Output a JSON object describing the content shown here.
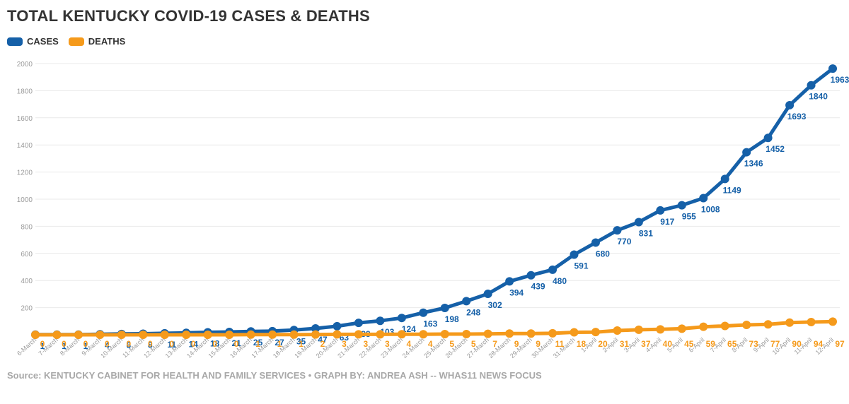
{
  "title": "TOTAL KENTUCKY COVID-19 CASES & DEATHS",
  "legend": {
    "cases_label": "CASES",
    "deaths_label": "DEATHS"
  },
  "source": "Source: KENTUCKY CABINET FOR HEALTH AND FAMILY SERVICES • GRAPH BY: ANDREA ASH -- WHAS11 NEWS FOCUS",
  "colors": {
    "cases": "#1560a8",
    "deaths": "#f59a1b",
    "grid": "#e9e9e9",
    "tick": "#9a9a9a"
  },
  "chart_data": {
    "type": "line",
    "title": "TOTAL KENTUCKY COVID-19 CASES & DEATHS",
    "categories": [
      "6-March",
      "7-March",
      "8-March",
      "9-March",
      "10-March",
      "11-March",
      "12-March",
      "13-March",
      "14-March",
      "15-March",
      "16-March",
      "17-March",
      "18-March",
      "19-March",
      "20-March",
      "21-March",
      "22-March",
      "23-March",
      "24-March",
      "25-March",
      "26-March",
      "27-March",
      "28-March",
      "29-March",
      "30-March",
      "31-March",
      "1-April",
      "2-April",
      "3-April",
      "4-April",
      "5-April",
      "6-April",
      "7-April",
      "8-April",
      "9-April",
      "10-April",
      "11-April",
      "12-April"
    ],
    "series": [
      {
        "name": "CASES",
        "values": [
          1,
          1,
          1,
          4,
          6,
          8,
          11,
          14,
          18,
          21,
          25,
          27,
          35,
          47,
          63,
          88,
          103,
          124,
          163,
          198,
          248,
          302,
          394,
          439,
          480,
          591,
          680,
          770,
          831,
          917,
          955,
          1008,
          1149,
          1346,
          1452,
          1693,
          1840,
          1963
        ]
      },
      {
        "name": "DEATHS",
        "values": [
          0,
          0,
          0,
          0,
          0,
          0,
          0,
          0,
          0,
          0,
          1,
          1,
          1,
          2,
          3,
          3,
          3,
          4,
          4,
          5,
          5,
          7,
          9,
          9,
          11,
          18,
          20,
          31,
          37,
          40,
          45,
          59,
          65,
          73,
          77,
          90,
          94,
          97
        ]
      }
    ],
    "ylim": [
      0,
      2000
    ],
    "yticks": [
      200,
      400,
      600,
      800,
      1000,
      1200,
      1400,
      1600,
      1800,
      2000
    ],
    "grid": true,
    "legend_position": "top-left"
  }
}
